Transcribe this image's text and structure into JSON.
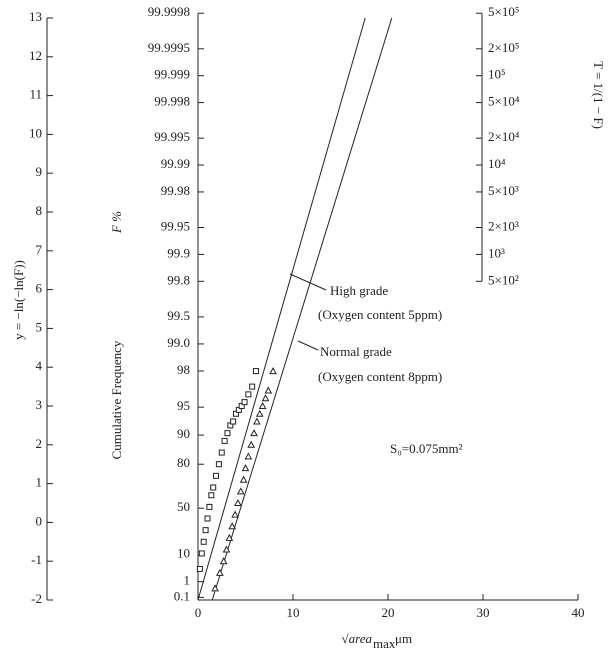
{
  "chart_data": {
    "type": "scatter",
    "ylabel": "y = −ln(−ln(F))",
    "xlabel": "√area",
    "xlabel_subscript": "max",
    "xlabel_unit": "μm",
    "xlim": [
      0,
      40
    ],
    "xticks": [
      0,
      10,
      20,
      30,
      40
    ],
    "ylim": [
      -2,
      13
    ],
    "yticks": [
      -2,
      -1,
      0,
      1,
      2,
      3,
      4,
      5,
      6,
      7,
      8,
      9,
      10,
      11,
      12,
      13
    ],
    "f_axis": {
      "label": "F  %",
      "caption": "Cumulative Frequency",
      "ticks": [
        99.9998,
        99.9995,
        99.999,
        99.998,
        99.995,
        99.99,
        99.98,
        99.95,
        99.9,
        99.8,
        99.5,
        {
          "value": 99,
          "label": "99.0"
        },
        98,
        95,
        90,
        80,
        50,
        10,
        1,
        0.1
      ]
    },
    "t_axis": {
      "label": "T = 1/(1 − F)",
      "ticks": [
        {
          "value": 500000,
          "label": "5×10⁵"
        },
        {
          "value": 200000,
          "label": "2×10⁵"
        },
        {
          "value": 100000,
          "label": "10⁵"
        },
        {
          "value": 50000,
          "label": "5×10⁴"
        },
        {
          "value": 20000,
          "label": "2×10⁴"
        },
        {
          "value": 10000,
          "label": "10⁴"
        },
        {
          "value": 5000,
          "label": "5×10³"
        },
        {
          "value": 2000,
          "label": "2×10³"
        },
        {
          "value": 1000,
          "label": "10³"
        },
        {
          "value": 500,
          "label": "5×10²"
        }
      ]
    },
    "annotation": "S₀=0.075mm²",
    "series": [
      {
        "name": "High grade",
        "note": "(Oxygen content 5ppm)",
        "marker": "square",
        "color": "#222222",
        "x": [
          0.2,
          0.4,
          0.6,
          0.8,
          1.0,
          1.2,
          1.4,
          1.6,
          1.9,
          2.2,
          2.5,
          2.8,
          3.1,
          3.4,
          3.7,
          4.0,
          4.3,
          4.6,
          4.9,
          5.3,
          5.7,
          6.1
        ],
        "y": [
          -1.2,
          -0.8,
          -0.5,
          -0.2,
          0.1,
          0.4,
          0.7,
          0.9,
          1.2,
          1.5,
          1.8,
          2.1,
          2.3,
          2.5,
          2.6,
          2.8,
          2.9,
          3.0,
          3.1,
          3.3,
          3.5,
          3.9
        ],
        "fit": {
          "x": [
            0,
            17.6
          ],
          "y": [
            -2,
            13
          ]
        }
      },
      {
        "name": "Normal grade",
        "note": "(Oxygen content 8ppm)",
        "marker": "triangle",
        "color": "#222222",
        "x": [
          1.8,
          2.3,
          2.7,
          3.0,
          3.3,
          3.6,
          3.9,
          4.2,
          4.5,
          4.8,
          5.0,
          5.3,
          5.6,
          5.9,
          6.2,
          6.5,
          6.8,
          7.1,
          7.4,
          7.9
        ],
        "y": [
          -1.7,
          -1.3,
          -1.0,
          -0.7,
          -0.4,
          -0.1,
          0.2,
          0.5,
          0.8,
          1.1,
          1.4,
          1.7,
          2.0,
          2.3,
          2.6,
          2.8,
          3.0,
          3.2,
          3.4,
          3.9
        ],
        "fit": {
          "x": [
            1.5,
            20.4
          ],
          "y": [
            -2,
            13
          ]
        }
      }
    ]
  }
}
